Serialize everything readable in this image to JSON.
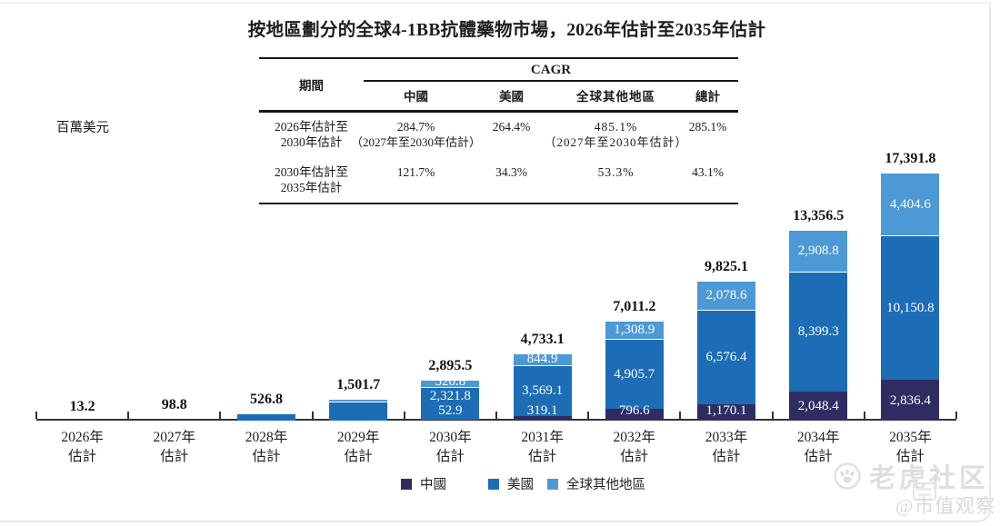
{
  "title": "按地區劃分的全球4-1BB抗體藥物市場，2026年估計至2035年估計",
  "unit_label": "百萬美元",
  "cagr_table": {
    "period_header": "期間",
    "group_header": "CAGR",
    "columns": [
      "中國",
      "美國",
      "全球其他地區",
      "總計"
    ],
    "rows": [
      {
        "period_line1": "2026年估計至",
        "period_line2": "2030年估計",
        "values": [
          "284.7%",
          "264.4%",
          "485.1%",
          "285.1%"
        ],
        "notes": [
          "（2027年至2030年估計）",
          "",
          "（2027年至2030年估計）",
          ""
        ]
      },
      {
        "period_line1": "2030年估計至",
        "period_line2": "2035年估計",
        "values": [
          "121.7%",
          "34.3%",
          "53.3%",
          "43.1%"
        ],
        "notes": [
          "",
          "",
          "",
          ""
        ]
      }
    ]
  },
  "chart_data": {
    "type": "bar",
    "stacked": true,
    "title": "按地區劃分的全球4-1BB抗體藥物市場，2026年估計至2035年估計",
    "unit": "百萬美元",
    "legend_position": "bottom",
    "axis": {
      "y_max": 17391.8,
      "gridlines": false,
      "y_axis_visible": false
    },
    "categories": [
      "2026年估計",
      "2027年估計",
      "2028年估計",
      "2029年估計",
      "2030年估計",
      "2031年估計",
      "2032年估計",
      "2033年估計",
      "2034年估計",
      "2035年估計"
    ],
    "series": [
      {
        "name": "中國",
        "color": "#2e2d62",
        "values": [
          0,
          0,
          0,
          0,
          52.9,
          319.1,
          796.6,
          1170.1,
          2048.4,
          2836.4
        ]
      },
      {
        "name": "美國",
        "color": "#1d6db6",
        "values": [
          13.2,
          98.8,
          526.8,
          1351.7,
          2321.8,
          3569.1,
          4905.7,
          6576.4,
          8399.3,
          10150.8
        ]
      },
      {
        "name": "全球其他地區",
        "color": "#4c99d5",
        "values": [
          0,
          0,
          0,
          150.0,
          520.8,
          844.9,
          1308.9,
          2078.6,
          2908.8,
          4404.6
        ]
      }
    ],
    "totals": [
      13.2,
      98.8,
      526.8,
      1501.7,
      2895.5,
      4733.1,
      7011.2,
      9825.1,
      13356.5,
      17391.8
    ],
    "bars": [
      {
        "category": [
          "2026年",
          "估計"
        ],
        "total_label": "13.2",
        "segment_labels": [
          "",
          "",
          ""
        ]
      },
      {
        "category": [
          "2027年",
          "估計"
        ],
        "total_label": "98.8",
        "segment_labels": [
          "",
          "",
          ""
        ]
      },
      {
        "category": [
          "2028年",
          "估計"
        ],
        "total_label": "526.8",
        "segment_labels": [
          "",
          "",
          ""
        ]
      },
      {
        "category": [
          "2029年",
          "估計"
        ],
        "total_label": "1,501.7",
        "segment_labels": [
          "",
          "",
          ""
        ]
      },
      {
        "category": [
          "2030年",
          "估計"
        ],
        "total_label": "2,895.5",
        "segment_labels": [
          "52.9",
          "2,321.8",
          "520.8"
        ]
      },
      {
        "category": [
          "2031年",
          "估計"
        ],
        "total_label": "4,733.1",
        "segment_labels": [
          "319.1",
          "3,569.1",
          "844.9"
        ]
      },
      {
        "category": [
          "2032年",
          "估計"
        ],
        "total_label": "7,011.2",
        "segment_labels": [
          "796.6",
          "4,905.7",
          "1,308.9"
        ]
      },
      {
        "category": [
          "2033年",
          "估計"
        ],
        "total_label": "9,825.1",
        "segment_labels": [
          "1,170.1",
          "6,576.4",
          "2,078.6"
        ]
      },
      {
        "category": [
          "2034年",
          "估計"
        ],
        "total_label": "13,356.5",
        "segment_labels": [
          "2,048.4",
          "8,399.3",
          "2,908.8"
        ]
      },
      {
        "category": [
          "2035年",
          "估計"
        ],
        "total_label": "17,391.8",
        "segment_labels": [
          "2,836.4",
          "10,150.8",
          "4,404.6"
        ]
      }
    ]
  },
  "watermark": {
    "community_label": "老虎社区",
    "handle_label": "@市值观察"
  }
}
